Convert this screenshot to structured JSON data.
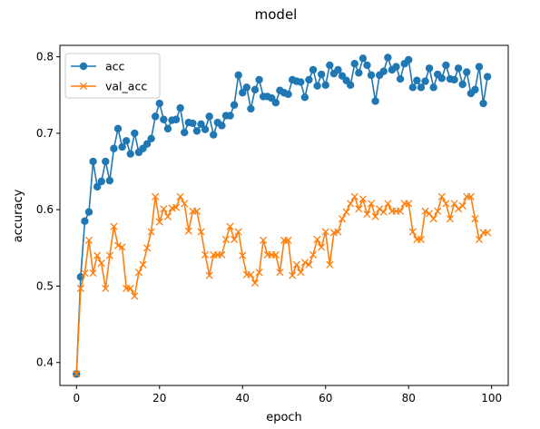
{
  "chart_data": {
    "type": "line",
    "title": "model",
    "xlabel": "epoch",
    "ylabel": "accuracy",
    "xlim": [
      -4,
      104
    ],
    "ylim": [
      0.37,
      0.815
    ],
    "x_ticks": [
      0,
      20,
      40,
      60,
      80,
      100
    ],
    "y_ticks": [
      0.4,
      0.5,
      0.6,
      0.7,
      0.8
    ],
    "grid": false,
    "legend_position": "top-left",
    "series": [
      {
        "name": "acc",
        "color": "#1f77b4",
        "marker": "circle",
        "values": [
          0.385,
          0.512,
          0.585,
          0.597,
          0.663,
          0.63,
          0.637,
          0.663,
          0.638,
          0.68,
          0.706,
          0.682,
          0.69,
          0.673,
          0.7,
          0.675,
          0.68,
          0.686,
          0.693,
          0.722,
          0.739,
          0.718,
          0.706,
          0.717,
          0.718,
          0.733,
          0.701,
          0.714,
          0.713,
          0.703,
          0.712,
          0.705,
          0.722,
          0.698,
          0.714,
          0.71,
          0.723,
          0.723,
          0.737,
          0.776,
          0.753,
          0.76,
          0.732,
          0.757,
          0.77,
          0.748,
          0.748,
          0.746,
          0.74,
          0.756,
          0.753,
          0.751,
          0.77,
          0.768,
          0.767,
          0.747,
          0.77,
          0.783,
          0.762,
          0.777,
          0.763,
          0.789,
          0.778,
          0.783,
          0.775,
          0.769,
          0.763,
          0.791,
          0.779,
          0.798,
          0.789,
          0.776,
          0.742,
          0.776,
          0.781,
          0.799,
          0.783,
          0.787,
          0.771,
          0.791,
          0.796,
          0.76,
          0.769,
          0.76,
          0.768,
          0.785,
          0.76,
          0.777,
          0.772,
          0.789,
          0.771,
          0.77,
          0.785,
          0.764,
          0.78,
          0.752,
          0.757,
          0.787,
          0.739,
          0.774
        ]
      },
      {
        "name": "val_acc",
        "color": "#ff7f0e",
        "marker": "x",
        "values": [
          0.385,
          0.497,
          0.517,
          0.56,
          0.517,
          0.54,
          0.53,
          0.497,
          0.54,
          0.578,
          0.553,
          0.551,
          0.497,
          0.497,
          0.487,
          0.518,
          0.528,
          0.55,
          0.571,
          0.617,
          0.584,
          0.601,
          0.591,
          0.602,
          0.603,
          0.617,
          0.608,
          0.572,
          0.598,
          0.598,
          0.571,
          0.541,
          0.514,
          0.541,
          0.541,
          0.541,
          0.561,
          0.578,
          0.561,
          0.571,
          0.54,
          0.515,
          0.515,
          0.504,
          0.518,
          0.56,
          0.541,
          0.541,
          0.541,
          0.518,
          0.56,
          0.56,
          0.514,
          0.528,
          0.518,
          0.531,
          0.528,
          0.541,
          0.561,
          0.551,
          0.571,
          0.528,
          0.57,
          0.571,
          0.588,
          0.597,
          0.608,
          0.617,
          0.601,
          0.614,
          0.594,
          0.608,
          0.591,
          0.601,
          0.597,
          0.608,
          0.598,
          0.598,
          0.598,
          0.608,
          0.608,
          0.571,
          0.561,
          0.561,
          0.598,
          0.595,
          0.588,
          0.598,
          0.617,
          0.608,
          0.588,
          0.608,
          0.601,
          0.605,
          0.617,
          0.617,
          0.588,
          0.561,
          0.57,
          0.57
        ]
      }
    ]
  }
}
